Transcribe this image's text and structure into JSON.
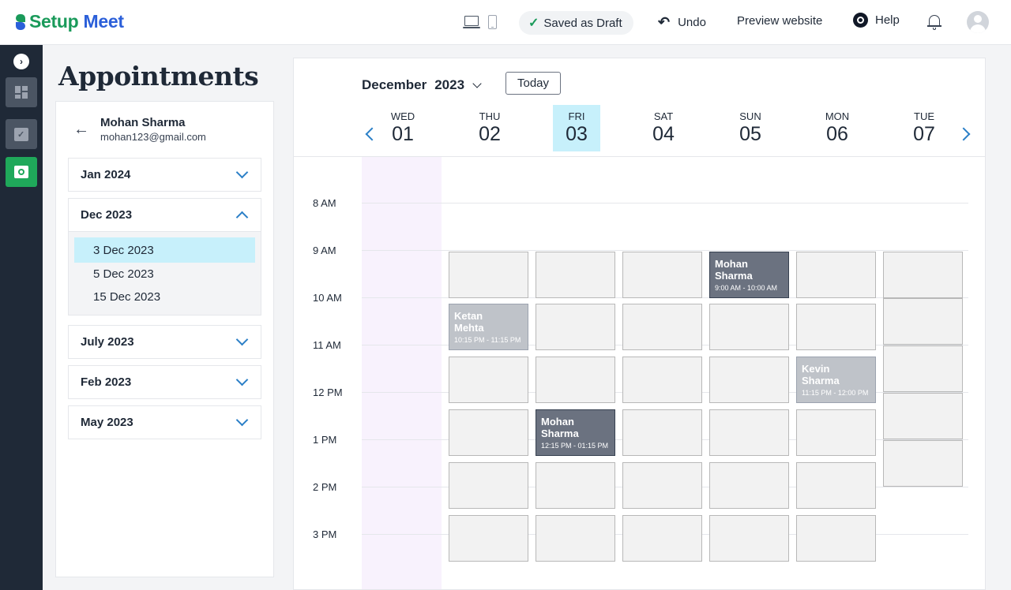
{
  "brand": {
    "part1": "Setup",
    "part2": "Meet",
    "color1": "#1a9a5a",
    "color2": "#2b5fd9"
  },
  "header": {
    "draft_status": "Saved as Draft",
    "undo": "Undo",
    "preview": "Preview website",
    "help": "Help"
  },
  "rail": {
    "items": [
      "dashboard",
      "appointments-calendar",
      "meet"
    ]
  },
  "page": {
    "title": "Appointments"
  },
  "user": {
    "name": "Mohan Sharma",
    "email": "mohan123@gmail.com"
  },
  "months": [
    {
      "label": "Jan 2024",
      "expanded": false
    },
    {
      "label": "Dec 2023",
      "expanded": true,
      "items": [
        "3 Dec 2023",
        "5 Dec 2023",
        "15 Dec 2023"
      ],
      "selected": "3 Dec 2023"
    },
    {
      "label": "July 2023",
      "expanded": false
    },
    {
      "label": "Feb 2023",
      "expanded": false
    },
    {
      "label": "May 2023",
      "expanded": false
    }
  ],
  "calendar": {
    "month": "December",
    "year": "2023",
    "today_label": "Today",
    "days": [
      {
        "name": "WED",
        "num": "01"
      },
      {
        "name": "THU",
        "num": "02"
      },
      {
        "name": "FRI",
        "num": "03",
        "today": true
      },
      {
        "name": "SAT",
        "num": "04"
      },
      {
        "name": "SUN",
        "num": "05"
      },
      {
        "name": "MON",
        "num": "06"
      },
      {
        "name": "TUE",
        "num": "07"
      }
    ],
    "hours": [
      "8 AM",
      "9 AM",
      "10 AM",
      "11 AM",
      "12 PM",
      "1 PM",
      "2 PM",
      "3 PM"
    ],
    "appointments": [
      {
        "name_line1": "Mohan",
        "name_line2": "Sharma",
        "time": "9:00 AM - 10:00 AM",
        "style": "dark"
      },
      {
        "name_line1": "Ketan",
        "name_line2": "Mehta",
        "time": "10:15 PM - 11:15 PM",
        "style": "light"
      },
      {
        "name_line1": "Kevin",
        "name_line2": "Sharma",
        "time": "11:15 PM - 12:00 PM",
        "style": "light"
      },
      {
        "name_line1": "Mohan",
        "name_line2": "Sharma",
        "time": "12:15 PM - 01:15 PM",
        "style": "dark"
      }
    ]
  }
}
